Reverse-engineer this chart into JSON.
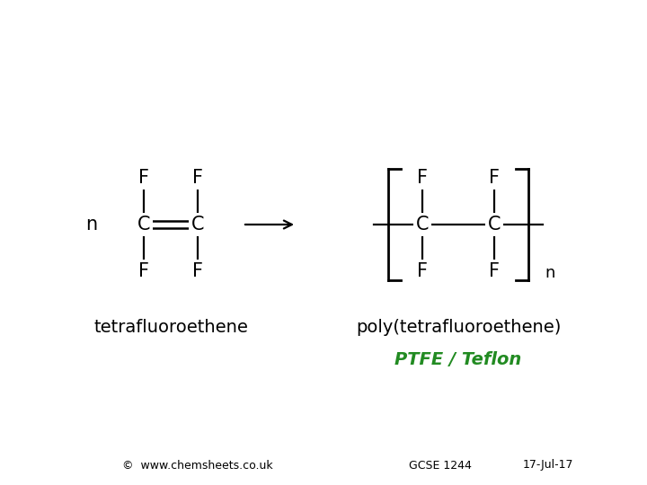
{
  "bg_color": "#ffffff",
  "text_color": "#000000",
  "green_color": "#228B22",
  "monomer_label": "tetrafluoroethene",
  "polymer_label": "poly(tetrafluoroethene)",
  "ptfe_label": "PTFE / Teflon",
  "footer_copy": "©  www.chemsheets.co.uk",
  "footer_gcse": "GCSE 1244",
  "footer_date": "17-Jul-17",
  "n_label": "n",
  "font_size_atoms": 15,
  "font_size_labels": 14,
  "font_size_ptfe": 14,
  "font_size_footer": 9,
  "font_size_n": 13
}
